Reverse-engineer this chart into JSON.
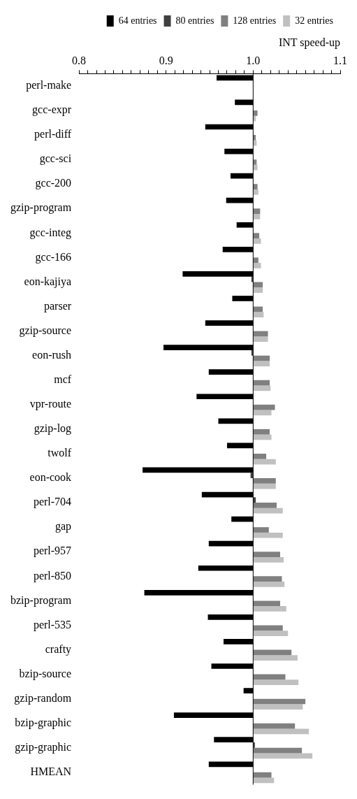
{
  "chart_data": {
    "type": "bar",
    "orientation": "horizontal",
    "xlabel": "INT speed-up",
    "categories": [
      "perl-make",
      "gcc-expr",
      "perl-diff",
      "gcc-sci",
      "gcc-200",
      "gzip-program",
      "gcc-integ",
      "gcc-166",
      "eon-kajiya",
      "parser",
      "gzip-source",
      "eon-rush",
      "mcf",
      "vpr-route",
      "gzip-log",
      "twolf",
      "eon-cook",
      "perl-704",
      "gap",
      "perl-957",
      "perl-850",
      "bzip-program",
      "perl-535",
      "crafty",
      "bzip-source",
      "gzip-random",
      "bzip-graphic",
      "gzip-graphic",
      "HMEAN"
    ],
    "series": [
      {
        "name": "64 entries",
        "color": "#000000",
        "base": [
          1,
          1,
          1,
          1,
          1,
          1,
          1,
          1,
          1,
          1,
          1,
          1,
          1,
          1,
          1,
          1,
          1,
          1,
          1,
          1,
          1,
          1,
          1,
          1,
          1,
          1,
          1,
          1,
          1
        ],
        "values": [
          -0.042,
          -0.021,
          -0.055,
          -0.033,
          -0.026,
          -0.031,
          -0.019,
          -0.035,
          -0.081,
          -0.024,
          -0.055,
          -0.103,
          -0.051,
          -0.065,
          -0.04,
          -0.03,
          -0.127,
          -0.059,
          -0.025,
          -0.051,
          -0.063,
          -0.125,
          -0.052,
          -0.034,
          -0.048,
          -0.011,
          -0.091,
          -0.045,
          -0.051
        ]
      },
      {
        "name": "80 entries",
        "color": "#404040",
        "base": [
          null,
          null,
          null,
          null,
          null,
          null,
          null,
          null,
          1,
          null,
          null,
          1,
          null,
          null,
          null,
          null,
          1,
          1,
          null,
          null,
          null,
          null,
          null,
          null,
          null,
          null,
          null,
          1,
          null
        ],
        "values": [
          null,
          null,
          null,
          null,
          null,
          null,
          null,
          null,
          -0.002,
          null,
          null,
          -0.002,
          null,
          null,
          null,
          null,
          -0.003,
          0.003,
          null,
          null,
          null,
          null,
          null,
          null,
          null,
          null,
          null,
          0.002,
          null
        ]
      },
      {
        "name": "128 entries",
        "color": "#808080",
        "base": [
          null,
          1,
          1,
          1,
          1,
          1,
          1,
          1,
          1,
          1,
          1,
          1,
          1,
          1,
          1,
          1,
          1,
          1,
          1,
          1,
          1,
          1,
          1,
          1,
          1,
          1,
          1,
          1,
          1
        ],
        "values": [
          null,
          0.005,
          0.003,
          0.004,
          0.005,
          0.008,
          0.007,
          0.006,
          0.011,
          0.011,
          0.017,
          0.019,
          0.019,
          0.025,
          0.019,
          0.015,
          0.026,
          0.027,
          0.018,
          0.031,
          0.033,
          0.031,
          0.034,
          0.044,
          0.037,
          0.06,
          0.048,
          0.056,
          0.021
        ]
      },
      {
        "name": "32 entries",
        "color": "#c0c0c0",
        "base": [
          null,
          1,
          1,
          1,
          1,
          1,
          1,
          1,
          1,
          1,
          1,
          1,
          1,
          1,
          1,
          1,
          1,
          1,
          1,
          1,
          1,
          1,
          1,
          1,
          1,
          1,
          1,
          1,
          1
        ],
        "values": [
          null,
          0.003,
          0.004,
          0.005,
          0.006,
          0.008,
          0.009,
          0.009,
          0.011,
          0.012,
          0.017,
          0.019,
          0.02,
          0.021,
          0.021,
          0.026,
          0.026,
          0.034,
          0.034,
          0.035,
          0.036,
          0.038,
          0.04,
          0.051,
          0.052,
          0.057,
          0.064,
          0.068,
          0.024
        ]
      }
    ],
    "xlim": [
      0.8,
      1.1
    ],
    "xticks": [
      0.8,
      {
        "value": 0.81,
        "label": null
      },
      {
        "value": 0.82,
        "label": null
      },
      {
        "value": 0.83,
        "label": null
      },
      {
        "value": 0.84,
        "label": null
      },
      {
        "value": 0.85,
        "label": null
      },
      {
        "value": 0.86,
        "label": null
      },
      {
        "value": 0.87,
        "label": null
      },
      {
        "value": 0.88,
        "label": null
      },
      {
        "value": 0.89,
        "label": null
      },
      0.9,
      {
        "value": 0.91,
        "label": null
      },
      {
        "value": 0.92,
        "label": null
      },
      {
        "value": 0.93,
        "label": null
      },
      {
        "value": 0.94,
        "label": null
      },
      {
        "value": 0.95,
        "label": null
      },
      {
        "value": 0.96,
        "label": null
      },
      {
        "value": 0.97,
        "label": null
      },
      {
        "value": 0.98,
        "label": null
      },
      {
        "value": 0.99,
        "label": null
      },
      {
        "value": 1,
        "label": "1.0"
      },
      {
        "value": 1.01,
        "label": null
      },
      {
        "value": 1.02,
        "label": null
      },
      {
        "value": 1.03,
        "label": null
      },
      {
        "value": 1.04,
        "label": null
      },
      {
        "value": 1.05,
        "label": null
      },
      {
        "value": 1.06,
        "label": null
      },
      {
        "value": 1.07,
        "label": null
      },
      {
        "value": 1.08,
        "label": null
      },
      {
        "value": 1.09,
        "label": null
      },
      1.1
    ],
    "legend": "top right"
  }
}
